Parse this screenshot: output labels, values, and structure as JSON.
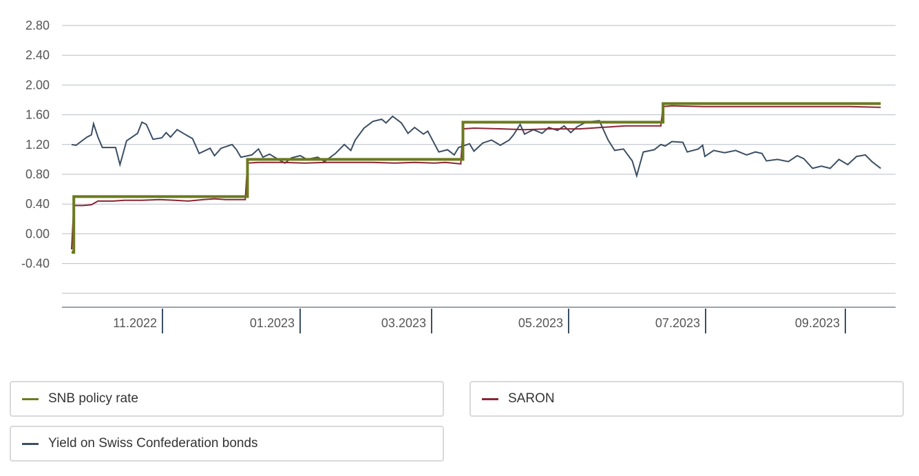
{
  "chart_data": {
    "type": "line",
    "x_type": "date",
    "y_ticks": [
      "2.80",
      "2.40",
      "2.00",
      "1.60",
      "1.20",
      "0.80",
      "0.40",
      "0.00",
      "-0.40"
    ],
    "x_ticks": [
      "11.2022",
      "01.2023",
      "03.2023",
      "05.2023",
      "07.2023",
      "09.2023"
    ],
    "ylim": [
      -0.9,
      2.8
    ],
    "xlim": [
      "2022-09-26",
      "2023-10-02"
    ],
    "grid": true,
    "legend_position": "bottom",
    "series": [
      {
        "name": "SNB policy rate",
        "color": "#6b7a1f",
        "step": true,
        "points": [
          [
            "2022-09-26",
            -0.25
          ],
          [
            "2022-09-27",
            0.5
          ],
          [
            "2022-12-15",
            1.0
          ],
          [
            "2023-03-23",
            1.5
          ],
          [
            "2023-06-22",
            1.75
          ],
          [
            "2023-09-29",
            1.75
          ]
        ]
      },
      {
        "name": "SARON",
        "color": "#8b2332",
        "points": [
          [
            "2022-09-26",
            -0.21
          ],
          [
            "2022-09-27",
            0.38
          ],
          [
            "2022-10-01",
            0.38
          ],
          [
            "2022-10-05",
            0.39
          ],
          [
            "2022-10-08",
            0.44
          ],
          [
            "2022-10-15",
            0.44
          ],
          [
            "2022-10-20",
            0.45
          ],
          [
            "2022-10-28",
            0.45
          ],
          [
            "2022-11-05",
            0.46
          ],
          [
            "2022-11-12",
            0.45
          ],
          [
            "2022-11-18",
            0.44
          ],
          [
            "2022-11-25",
            0.46
          ],
          [
            "2022-11-30",
            0.47
          ],
          [
            "2022-12-05",
            0.46
          ],
          [
            "2022-12-14",
            0.46
          ],
          [
            "2022-12-15",
            0.95
          ],
          [
            "2022-12-20",
            0.96
          ],
          [
            "2022-12-31",
            0.96
          ],
          [
            "2023-01-10",
            0.95
          ],
          [
            "2023-01-20",
            0.96
          ],
          [
            "2023-02-01",
            0.96
          ],
          [
            "2023-02-10",
            0.96
          ],
          [
            "2023-02-20",
            0.95
          ],
          [
            "2023-03-01",
            0.96
          ],
          [
            "2023-03-10",
            0.95
          ],
          [
            "2023-03-15",
            0.96
          ],
          [
            "2023-03-22",
            0.94
          ],
          [
            "2023-03-23",
            1.41
          ],
          [
            "2023-03-28",
            1.42
          ],
          [
            "2023-04-10",
            1.41
          ],
          [
            "2023-04-20",
            1.4
          ],
          [
            "2023-05-01",
            1.41
          ],
          [
            "2023-05-15",
            1.41
          ],
          [
            "2023-05-25",
            1.43
          ],
          [
            "2023-06-05",
            1.45
          ],
          [
            "2023-06-15",
            1.45
          ],
          [
            "2023-06-21",
            1.45
          ],
          [
            "2023-06-22",
            1.71
          ],
          [
            "2023-06-26",
            1.72
          ],
          [
            "2023-07-10",
            1.71
          ],
          [
            "2023-07-20",
            1.71
          ],
          [
            "2023-08-01",
            1.71
          ],
          [
            "2023-08-15",
            1.71
          ],
          [
            "2023-09-01",
            1.71
          ],
          [
            "2023-09-15",
            1.71
          ],
          [
            "2023-09-29",
            1.7
          ]
        ]
      },
      {
        "name": "Yield on Swiss Confederation bonds",
        "color": "#3a4e63",
        "points": [
          [
            "2022-09-26",
            1.2
          ],
          [
            "2022-09-28",
            1.19
          ],
          [
            "2022-10-03",
            1.3
          ],
          [
            "2022-10-05",
            1.33
          ],
          [
            "2022-10-06",
            1.48
          ],
          [
            "2022-10-08",
            1.3
          ],
          [
            "2022-10-10",
            1.16
          ],
          [
            "2022-10-16",
            1.16
          ],
          [
            "2022-10-18",
            0.93
          ],
          [
            "2022-10-21",
            1.25
          ],
          [
            "2022-10-26",
            1.35
          ],
          [
            "2022-10-28",
            1.5
          ],
          [
            "2022-10-30",
            1.47
          ],
          [
            "2022-11-02",
            1.27
          ],
          [
            "2022-11-06",
            1.29
          ],
          [
            "2022-11-08",
            1.36
          ],
          [
            "2022-11-10",
            1.3
          ],
          [
            "2022-11-13",
            1.4
          ],
          [
            "2022-11-17",
            1.33
          ],
          [
            "2022-11-20",
            1.28
          ],
          [
            "2022-11-23",
            1.08
          ],
          [
            "2022-11-28",
            1.15
          ],
          [
            "2022-11-30",
            1.05
          ],
          [
            "2022-12-03",
            1.15
          ],
          [
            "2022-12-08",
            1.2
          ],
          [
            "2022-12-10",
            1.13
          ],
          [
            "2022-12-12",
            1.03
          ],
          [
            "2022-12-17",
            1.06
          ],
          [
            "2022-12-20",
            1.14
          ],
          [
            "2022-12-22",
            1.03
          ],
          [
            "2022-12-25",
            1.07
          ],
          [
            "2022-12-29",
            1.0
          ],
          [
            "2023-01-01",
            0.95
          ],
          [
            "2023-01-04",
            1.02
          ],
          [
            "2023-01-08",
            1.05
          ],
          [
            "2023-01-11",
            1.0
          ],
          [
            "2023-01-16",
            1.03
          ],
          [
            "2023-01-19",
            0.97
          ],
          [
            "2023-01-24",
            1.08
          ],
          [
            "2023-01-28",
            1.2
          ],
          [
            "2023-01-31",
            1.12
          ],
          [
            "2023-02-02",
            1.26
          ],
          [
            "2023-02-06",
            1.42
          ],
          [
            "2023-02-10",
            1.51
          ],
          [
            "2023-02-14",
            1.54
          ],
          [
            "2023-02-16",
            1.49
          ],
          [
            "2023-02-19",
            1.58
          ],
          [
            "2023-02-23",
            1.49
          ],
          [
            "2023-02-26",
            1.35
          ],
          [
            "2023-03-01",
            1.43
          ],
          [
            "2023-03-05",
            1.34
          ],
          [
            "2023-03-07",
            1.38
          ],
          [
            "2023-03-12",
            1.1
          ],
          [
            "2023-03-16",
            1.13
          ],
          [
            "2023-03-19",
            1.06
          ],
          [
            "2023-03-21",
            1.16
          ],
          [
            "2023-03-26",
            1.21
          ],
          [
            "2023-03-28",
            1.11
          ],
          [
            "2023-04-01",
            1.22
          ],
          [
            "2023-04-05",
            1.26
          ],
          [
            "2023-04-09",
            1.19
          ],
          [
            "2023-04-13",
            1.26
          ],
          [
            "2023-04-15",
            1.33
          ],
          [
            "2023-04-18",
            1.47
          ],
          [
            "2023-04-20",
            1.34
          ],
          [
            "2023-04-24",
            1.4
          ],
          [
            "2023-04-28",
            1.35
          ],
          [
            "2023-05-01",
            1.43
          ],
          [
            "2023-05-05",
            1.39
          ],
          [
            "2023-05-08",
            1.45
          ],
          [
            "2023-05-11",
            1.36
          ],
          [
            "2023-05-14",
            1.44
          ],
          [
            "2023-05-18",
            1.5
          ],
          [
            "2023-05-24",
            1.52
          ],
          [
            "2023-05-28",
            1.26
          ],
          [
            "2023-05-31",
            1.12
          ],
          [
            "2023-06-04",
            1.14
          ],
          [
            "2023-06-08",
            0.98
          ],
          [
            "2023-06-10",
            0.78
          ],
          [
            "2023-06-13",
            1.1
          ],
          [
            "2023-06-18",
            1.13
          ],
          [
            "2023-06-21",
            1.2
          ],
          [
            "2023-06-23",
            1.18
          ],
          [
            "2023-06-26",
            1.24
          ],
          [
            "2023-07-01",
            1.23
          ],
          [
            "2023-07-03",
            1.1
          ],
          [
            "2023-07-08",
            1.14
          ],
          [
            "2023-07-10",
            1.19
          ],
          [
            "2023-07-11",
            1.04
          ],
          [
            "2023-07-15",
            1.12
          ],
          [
            "2023-07-20",
            1.09
          ],
          [
            "2023-07-25",
            1.12
          ],
          [
            "2023-07-30",
            1.06
          ],
          [
            "2023-08-03",
            1.1
          ],
          [
            "2023-08-06",
            1.08
          ],
          [
            "2023-08-08",
            0.98
          ],
          [
            "2023-08-13",
            1.0
          ],
          [
            "2023-08-18",
            0.97
          ],
          [
            "2023-08-22",
            1.05
          ],
          [
            "2023-08-25",
            1.01
          ],
          [
            "2023-08-29",
            0.88
          ],
          [
            "2023-09-02",
            0.91
          ],
          [
            "2023-09-06",
            0.88
          ],
          [
            "2023-09-10",
            1.0
          ],
          [
            "2023-09-14",
            0.93
          ],
          [
            "2023-09-18",
            1.04
          ],
          [
            "2023-09-22",
            1.06
          ],
          [
            "2023-09-25",
            0.97
          ],
          [
            "2023-09-29",
            0.88
          ]
        ]
      }
    ]
  },
  "legend": [
    {
      "label": "SNB policy rate",
      "color": "#6b7a1f"
    },
    {
      "label": "SARON",
      "color": "#8b2332"
    },
    {
      "label": "Yield on Swiss Confederation bonds",
      "color": "#3a4e63"
    }
  ]
}
